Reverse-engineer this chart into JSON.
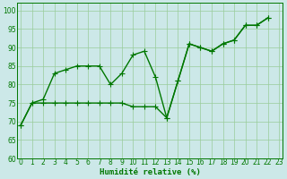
{
  "xlabel": "Humidité relative (%)",
  "background_color": "#cce8e8",
  "line_color": "#007700",
  "grid_color": "#99cc99",
  "line1_x": [
    0,
    1,
    2,
    3,
    4,
    5,
    6,
    7,
    8,
    9,
    10,
    11,
    12,
    13,
    14,
    15,
    16,
    17,
    18,
    19,
    20,
    21,
    22
  ],
  "line1_y": [
    69,
    75,
    76,
    83,
    84,
    85,
    85,
    85,
    80,
    83,
    88,
    89,
    82,
    71,
    81,
    91,
    90,
    89,
    91,
    92,
    96,
    96,
    98
  ],
  "line2_x": [
    0,
    1,
    2,
    3,
    4,
    5,
    6,
    7,
    8,
    9,
    10,
    11,
    12,
    13,
    14,
    15,
    16,
    17,
    18,
    19,
    20,
    21,
    22
  ],
  "line2_y": [
    69,
    75,
    75,
    75,
    75,
    75,
    75,
    75,
    75,
    75,
    74,
    74,
    74,
    71,
    81,
    91,
    90,
    89,
    91,
    92,
    96,
    96,
    98
  ],
  "xlim": [
    -0.3,
    23.3
  ],
  "ylim": [
    60,
    102
  ],
  "yticks": [
    60,
    65,
    70,
    75,
    80,
    85,
    90,
    95,
    100
  ],
  "xticks": [
    0,
    1,
    2,
    3,
    4,
    5,
    6,
    7,
    8,
    9,
    10,
    11,
    12,
    13,
    14,
    15,
    16,
    17,
    18,
    19,
    20,
    21,
    22,
    23
  ],
  "xlabel_fontsize": 6.5,
  "tick_fontsize": 5.5,
  "line_width": 1.0,
  "marker_size": 2.5
}
